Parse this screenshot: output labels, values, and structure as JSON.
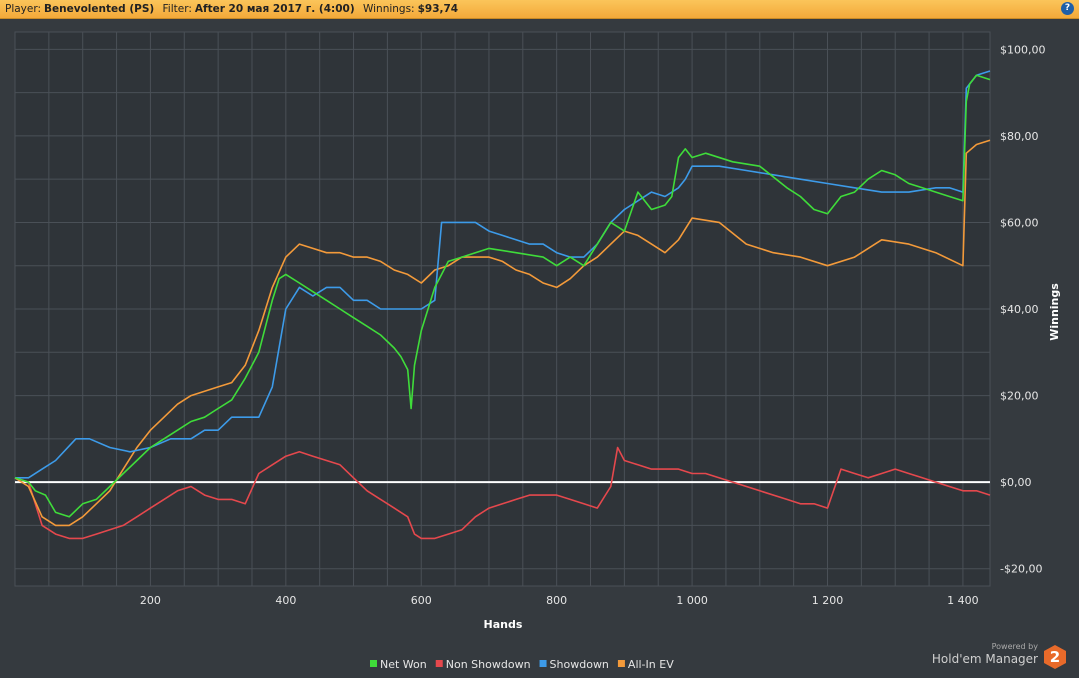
{
  "header": {
    "player_label": "Player:",
    "player_value": "Benevolented (PS)",
    "filter_label": "Filter:",
    "filter_value": "After 20 мая 2017 г. (4:00)",
    "winnings_label": "Winnings:",
    "winnings_value": "$93,74",
    "help_icon": "?"
  },
  "brand": {
    "powered": "Powered by",
    "name": "Hold'em Manager",
    "logo_text": "2"
  },
  "colors": {
    "net_won": "#3fdc3a",
    "non_showdown": "#e5484d",
    "showdown": "#3d9be9",
    "all_in_ev": "#f39a3a",
    "zero_line": "#ffffff",
    "grid": "#4a5057"
  },
  "chart_data": {
    "type": "line",
    "xlabel": "Hands",
    "ylabel": "Winnings",
    "xlim": [
      0,
      1440
    ],
    "ylim": [
      -24,
      104
    ],
    "x_ticks": [
      200,
      400,
      600,
      800,
      1000,
      1200,
      1400
    ],
    "x_tick_labels": [
      "200",
      "400",
      "600",
      "800",
      "1 000",
      "1 200",
      "1 400"
    ],
    "y_ticks": [
      -20,
      0,
      20,
      40,
      60,
      80,
      100
    ],
    "y_tick_labels": [
      "-$20,00",
      "$0,00",
      "$20,00",
      "$40,00",
      "$60,00",
      "$80,00",
      "$100,00"
    ],
    "legend_position": "bottom",
    "grid": true,
    "series": [
      {
        "name": "Net Won",
        "color": "#3fdc3a",
        "x": [
          0,
          20,
          30,
          45,
          60,
          80,
          100,
          120,
          140,
          160,
          180,
          200,
          220,
          240,
          260,
          280,
          300,
          320,
          340,
          360,
          380,
          390,
          400,
          420,
          440,
          460,
          480,
          500,
          520,
          540,
          560,
          570,
          580,
          585,
          590,
          600,
          620,
          630,
          640,
          660,
          700,
          740,
          780,
          800,
          820,
          840,
          860,
          880,
          900,
          920,
          940,
          960,
          970,
          980,
          990,
          1000,
          1020,
          1060,
          1100,
          1140,
          1160,
          1180,
          1200,
          1220,
          1240,
          1260,
          1280,
          1300,
          1320,
          1340,
          1360,
          1380,
          1400,
          1405,
          1410,
          1420,
          1440
        ],
        "y": [
          1,
          0,
          -2,
          -3,
          -7,
          -8,
          -5,
          -4,
          -1,
          2,
          5,
          8,
          10,
          12,
          14,
          15,
          17,
          19,
          24,
          30,
          42,
          47,
          48,
          46,
          44,
          42,
          40,
          38,
          36,
          34,
          31,
          29,
          26,
          17,
          27,
          35,
          45,
          48,
          51,
          52,
          54,
          53,
          52,
          50,
          52,
          50,
          55,
          60,
          58,
          67,
          63,
          64,
          66,
          75,
          77,
          75,
          76,
          74,
          73,
          68,
          66,
          63,
          62,
          66,
          67,
          70,
          72,
          71,
          69,
          68,
          67,
          66,
          65,
          88,
          92,
          94,
          93
        ]
      },
      {
        "name": "Non Showdown",
        "color": "#e5484d",
        "x": [
          0,
          20,
          40,
          60,
          80,
          100,
          120,
          140,
          160,
          180,
          200,
          220,
          240,
          260,
          280,
          300,
          320,
          340,
          360,
          380,
          400,
          420,
          440,
          460,
          480,
          500,
          520,
          540,
          560,
          580,
          590,
          600,
          620,
          640,
          660,
          680,
          700,
          720,
          740,
          760,
          780,
          800,
          820,
          840,
          860,
          880,
          890,
          900,
          920,
          940,
          960,
          980,
          1000,
          1020,
          1060,
          1100,
          1140,
          1160,
          1180,
          1200,
          1220,
          1240,
          1260,
          1280,
          1300,
          1320,
          1340,
          1360,
          1380,
          1400,
          1420,
          1440
        ],
        "y": [
          1,
          0,
          -10,
          -12,
          -13,
          -13,
          -12,
          -11,
          -10,
          -8,
          -6,
          -4,
          -2,
          -1,
          -3,
          -4,
          -4,
          -5,
          2,
          4,
          6,
          7,
          6,
          5,
          4,
          1,
          -2,
          -4,
          -6,
          -8,
          -12,
          -13,
          -13,
          -12,
          -11,
          -8,
          -6,
          -5,
          -4,
          -3,
          -3,
          -3,
          -4,
          -5,
          -6,
          -1,
          8,
          5,
          4,
          3,
          3,
          3,
          2,
          2,
          0,
          -2,
          -4,
          -5,
          -5,
          -6,
          3,
          2,
          1,
          2,
          3,
          2,
          1,
          0,
          -1,
          -2,
          -2,
          -3
        ]
      },
      {
        "name": "Showdown",
        "color": "#3d9be9",
        "x": [
          0,
          20,
          40,
          60,
          90,
          110,
          140,
          170,
          200,
          230,
          260,
          280,
          300,
          320,
          340,
          360,
          380,
          400,
          420,
          440,
          460,
          480,
          500,
          520,
          540,
          560,
          580,
          600,
          620,
          630,
          640,
          660,
          680,
          700,
          720,
          740,
          760,
          780,
          800,
          820,
          840,
          860,
          880,
          900,
          920,
          940,
          960,
          980,
          990,
          1000,
          1040,
          1080,
          1120,
          1160,
          1200,
          1240,
          1280,
          1320,
          1360,
          1380,
          1400,
          1405,
          1420,
          1440
        ],
        "y": [
          1,
          1,
          3,
          5,
          10,
          10,
          8,
          7,
          8,
          10,
          10,
          12,
          12,
          15,
          15,
          15,
          22,
          40,
          45,
          43,
          45,
          45,
          42,
          42,
          40,
          40,
          40,
          40,
          42,
          60,
          60,
          60,
          60,
          58,
          57,
          56,
          55,
          55,
          53,
          52,
          52,
          55,
          60,
          63,
          65,
          67,
          66,
          68,
          70,
          73,
          73,
          72,
          71,
          70,
          69,
          68,
          67,
          67,
          68,
          68,
          67,
          91,
          94,
          95
        ]
      },
      {
        "name": "All-In EV",
        "color": "#f39a3a",
        "x": [
          0,
          20,
          40,
          60,
          80,
          100,
          120,
          140,
          160,
          180,
          200,
          220,
          240,
          260,
          280,
          300,
          320,
          340,
          360,
          380,
          400,
          420,
          440,
          460,
          480,
          500,
          520,
          540,
          560,
          580,
          600,
          620,
          640,
          660,
          680,
          700,
          720,
          740,
          760,
          780,
          800,
          820,
          840,
          860,
          880,
          900,
          920,
          940,
          960,
          980,
          1000,
          1040,
          1080,
          1120,
          1160,
          1200,
          1240,
          1280,
          1320,
          1360,
          1400,
          1405,
          1420,
          1440
        ],
        "y": [
          1,
          -1,
          -8,
          -10,
          -10,
          -8,
          -5,
          -2,
          3,
          8,
          12,
          15,
          18,
          20,
          21,
          22,
          23,
          27,
          35,
          45,
          52,
          55,
          54,
          53,
          53,
          52,
          52,
          51,
          49,
          48,
          46,
          49,
          50,
          52,
          52,
          52,
          51,
          49,
          48,
          46,
          45,
          47,
          50,
          52,
          55,
          58,
          57,
          55,
          53,
          56,
          61,
          60,
          55,
          53,
          52,
          50,
          52,
          56,
          55,
          53,
          50,
          76,
          78,
          79
        ]
      }
    ]
  }
}
